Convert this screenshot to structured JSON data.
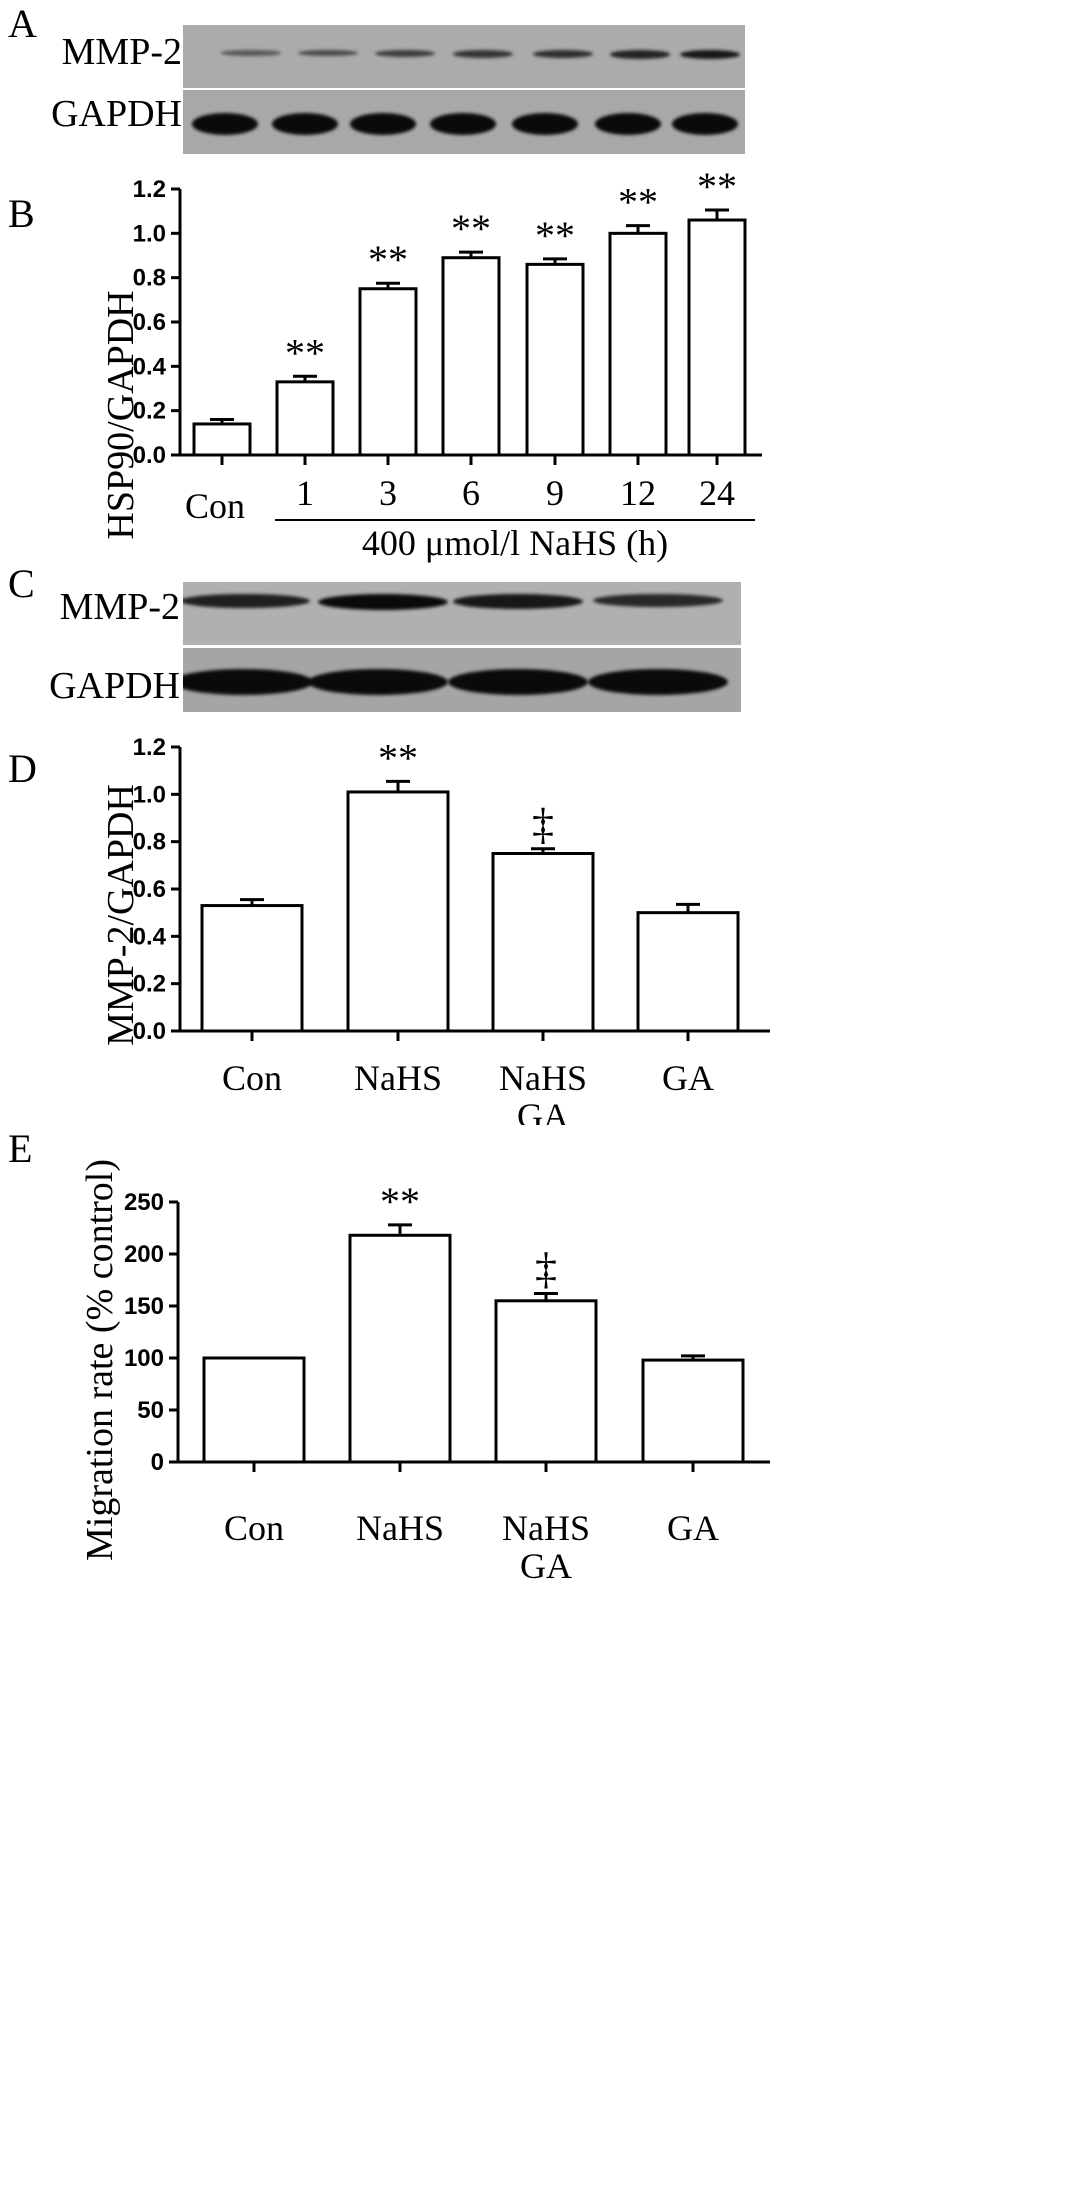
{
  "panels": {
    "a": {
      "letter": "A",
      "rows": [
        "MMP-2",
        "GAPDH"
      ],
      "mmp2_intensity": [
        0.1,
        0.25,
        0.4,
        0.5,
        0.55,
        0.7,
        0.85
      ],
      "gapdh_intensity": [
        1,
        1,
        1,
        1,
        1,
        1,
        1
      ]
    },
    "c": {
      "letter": "C",
      "rows": [
        "MMP-2",
        "GAPDH"
      ],
      "mmp2_intensity": [
        0.75,
        1.0,
        0.85,
        0.65
      ],
      "gapdh_intensity": [
        1,
        1,
        1,
        1
      ]
    },
    "b": {
      "letter": "B"
    },
    "d": {
      "letter": "D"
    },
    "e": {
      "letter": "E"
    }
  },
  "chart_data": [
    {
      "panel": "B",
      "type": "bar",
      "categories": [
        "Con",
        "1",
        "3",
        "6",
        "9",
        "12",
        "24"
      ],
      "values": [
        0.14,
        0.33,
        0.75,
        0.89,
        0.86,
        1.0,
        1.06
      ],
      "errors": [
        0.02,
        0.025,
        0.025,
        0.025,
        0.025,
        0.035,
        0.045
      ],
      "annotations": [
        "",
        "**",
        "**",
        "**",
        "**",
        "**",
        "**"
      ],
      "ylabel": "HSP90/GAPDH",
      "xlabel": "400 μmol/l NaHS (h)",
      "ylim": [
        0,
        1.2
      ],
      "yticks": [
        "0.0",
        "0.2",
        "0.4",
        "0.6",
        "0.8",
        "1.0",
        "1.2"
      ]
    },
    {
      "panel": "D",
      "type": "bar",
      "categories": [
        [
          "Con"
        ],
        [
          "NaHS"
        ],
        [
          "NaHS",
          "GA"
        ],
        [
          "GA"
        ]
      ],
      "values": [
        0.53,
        1.01,
        0.75,
        0.5
      ],
      "errors": [
        0.025,
        0.045,
        0.02,
        0.035
      ],
      "annotations": [
        "",
        "**",
        "‡",
        ""
      ],
      "ylabel": "MMP-2/GAPDH",
      "ylim": [
        0,
        1.2
      ],
      "yticks": [
        "0.0",
        "0.2",
        "0.4",
        "0.6",
        "0.8",
        "1.0",
        "1.2"
      ]
    },
    {
      "panel": "E",
      "type": "bar",
      "categories": [
        [
          "Con"
        ],
        [
          "NaHS"
        ],
        [
          "NaHS",
          "GA"
        ],
        [
          "GA"
        ]
      ],
      "values": [
        100,
        218,
        155,
        98
      ],
      "errors": [
        0,
        10,
        7,
        4
      ],
      "annotations": [
        "",
        "**",
        "‡",
        ""
      ],
      "ylabel": "Migration rate (% control)",
      "ylim": [
        0,
        250
      ],
      "yticks": [
        "0",
        "50",
        "100",
        "150",
        "200",
        "250"
      ]
    }
  ]
}
